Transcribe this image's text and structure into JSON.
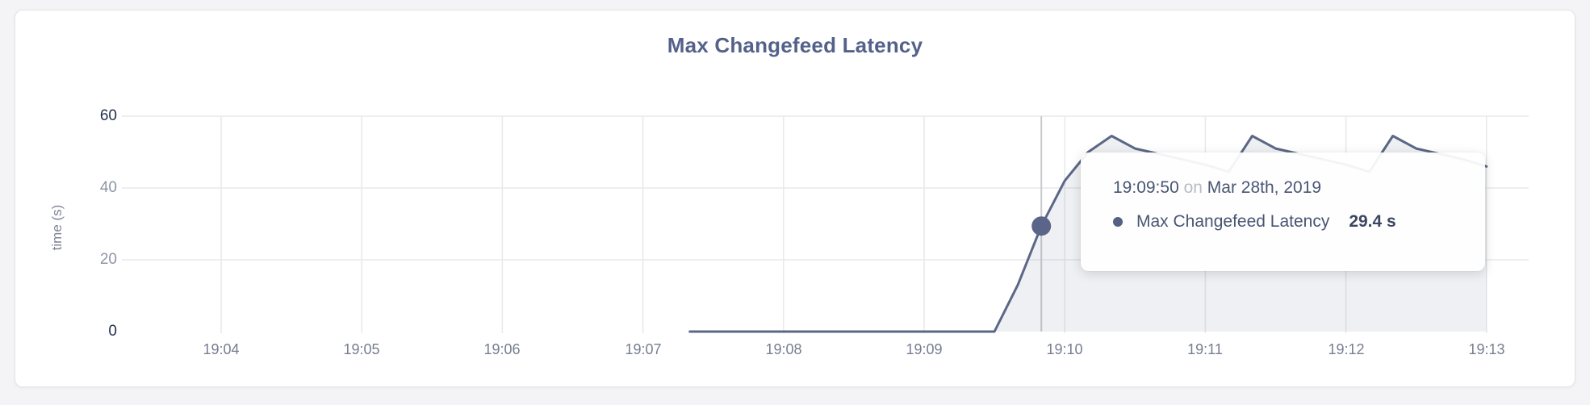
{
  "page": {
    "title": "Max Changefeed Latency"
  },
  "chart_data": {
    "type": "area",
    "title": "Max Changefeed Latency",
    "xlabel": "",
    "ylabel": "time (s)",
    "ylim": [
      0,
      60
    ],
    "y_ticks": [
      0,
      20,
      40,
      60
    ],
    "y_tick_emphasis": [
      0,
      60
    ],
    "x_ticks": [
      "19:04",
      "19:05",
      "19:06",
      "19:07",
      "19:08",
      "19:09",
      "19:10",
      "19:11",
      "19:12",
      "19:13"
    ],
    "grid": true,
    "legend_position": "none",
    "series": [
      {
        "name": "Max Changefeed Latency",
        "unit": "s",
        "points": [
          [
            "19:07:20",
            0
          ],
          [
            "19:07:30",
            0
          ],
          [
            "19:07:40",
            0
          ],
          [
            "19:07:50",
            0
          ],
          [
            "19:08:00",
            0
          ],
          [
            "19:08:10",
            0
          ],
          [
            "19:08:20",
            0
          ],
          [
            "19:08:30",
            0
          ],
          [
            "19:08:40",
            0
          ],
          [
            "19:08:50",
            0
          ],
          [
            "19:09:00",
            0
          ],
          [
            "19:09:10",
            0
          ],
          [
            "19:09:20",
            0
          ],
          [
            "19:09:30",
            0
          ],
          [
            "19:09:40",
            13
          ],
          [
            "19:09:50",
            29.4
          ],
          [
            "19:10:00",
            42
          ],
          [
            "19:10:10",
            50
          ],
          [
            "19:10:20",
            54.5
          ],
          [
            "19:10:30",
            51
          ],
          [
            "19:10:40",
            49.5
          ],
          [
            "19:10:50",
            48
          ],
          [
            "19:11:00",
            46.5
          ],
          [
            "19:11:10",
            44.5
          ],
          [
            "19:11:20",
            54.5
          ],
          [
            "19:11:30",
            51
          ],
          [
            "19:11:40",
            49.5
          ],
          [
            "19:11:50",
            48
          ],
          [
            "19:12:00",
            46.5
          ],
          [
            "19:12:10",
            44.5
          ],
          [
            "19:12:20",
            54.5
          ],
          [
            "19:12:30",
            51
          ],
          [
            "19:12:40",
            49.5
          ],
          [
            "19:12:50",
            48
          ],
          [
            "19:13:00",
            46
          ]
        ]
      }
    ]
  },
  "tooltip": {
    "time": "19:09:50",
    "conjunction": "on",
    "date": "Mar 28th, 2019",
    "series_label": "Max Changefeed Latency",
    "value_label": "29.4 s",
    "hover_time": "19:09:50",
    "hover_value": 29.4
  },
  "colors": {
    "line": "#5b6785",
    "area": "rgba(92,103,133,0.10)",
    "dot": "#5a6589",
    "grid": "#e8e9ec",
    "hover_line": "#c9cacf",
    "title": "#54628a",
    "tick_strong": "#22304c",
    "tick_muted": "#8d94a4",
    "x_tick": "#757e91",
    "tooltip_text": "#495672",
    "tooltip_muted": "#b9bcc3",
    "tooltip_value": "#3c4660"
  }
}
